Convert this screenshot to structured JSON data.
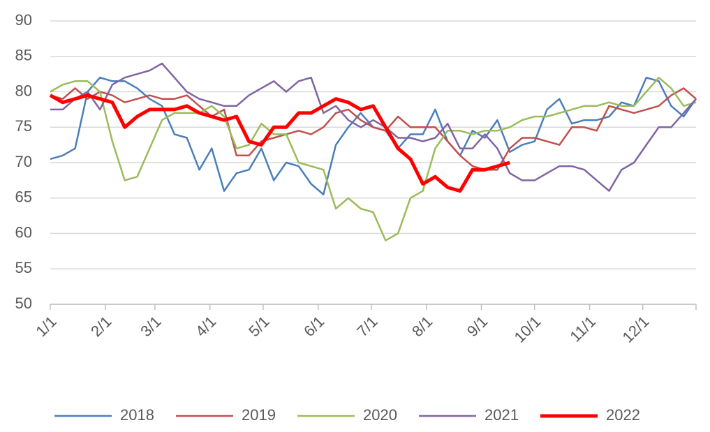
{
  "chart_data": {
    "type": "line",
    "x": [
      1,
      8,
      15,
      22,
      29,
      36,
      43,
      50,
      57,
      64,
      71,
      78,
      85,
      92,
      99,
      106,
      113,
      120,
      127,
      134,
      141,
      148,
      155,
      162,
      169,
      176,
      183,
      190,
      197,
      204,
      211,
      218,
      225,
      232,
      239,
      246,
      253,
      260,
      267,
      274,
      281,
      288,
      295,
      302,
      309,
      316,
      323,
      330,
      337,
      344,
      351,
      358,
      365
    ],
    "xlim": [
      1,
      365
    ],
    "xticks": [
      {
        "value": 1,
        "label": "1/1"
      },
      {
        "value": 32,
        "label": "2/1"
      },
      {
        "value": 60,
        "label": "3/1"
      },
      {
        "value": 91,
        "label": "4/1"
      },
      {
        "value": 121,
        "label": "5/1"
      },
      {
        "value": 152,
        "label": "6/1"
      },
      {
        "value": 182,
        "label": "7/1"
      },
      {
        "value": 213,
        "label": "8/1"
      },
      {
        "value": 244,
        "label": "9/1"
      },
      {
        "value": 274,
        "label": "10/1"
      },
      {
        "value": 305,
        "label": "11/1"
      },
      {
        "value": 335,
        "label": "12/1"
      }
    ],
    "ylim": [
      50,
      90
    ],
    "yticks": [
      50,
      55,
      60,
      65,
      70,
      75,
      80,
      85,
      90
    ],
    "grid": true,
    "legend": "bottom",
    "series": [
      {
        "name": "2018",
        "color": "#4a7ebb",
        "width": 2.5,
        "values": [
          70.5,
          71,
          72,
          80,
          82,
          81.5,
          81.5,
          80.5,
          79,
          78,
          74,
          73.5,
          69,
          72,
          66,
          68.5,
          69,
          72,
          67.5,
          70,
          69.5,
          67,
          65.5,
          72.5,
          75,
          77,
          75,
          74.5,
          72,
          74,
          74,
          77.5,
          73,
          71,
          74.5,
          73.5,
          76,
          71.5,
          72.5,
          73,
          77.5,
          79,
          75.5,
          76,
          76,
          76.5,
          78.5,
          78,
          82,
          81.5,
          78,
          76.5,
          79
        ]
      },
      {
        "name": "2019",
        "color": "#c0504d",
        "width": 2.5,
        "values": [
          79.5,
          79,
          80.5,
          79,
          80,
          79.5,
          78.5,
          79,
          79.5,
          79,
          79,
          79.5,
          78,
          76.5,
          77.5,
          71,
          71,
          73,
          73.5,
          74,
          74.5,
          74,
          75,
          77,
          77.5,
          76,
          75,
          74.5,
          76.5,
          75,
          75,
          75,
          73,
          71,
          69.5,
          69,
          69,
          72,
          73.5,
          73.5,
          73,
          72.5,
          75,
          75,
          74.5,
          78,
          77.5,
          77,
          77.5,
          78,
          79.5,
          80.5,
          79
        ]
      },
      {
        "name": "2020",
        "color": "#9bbb59",
        "width": 2.5,
        "values": [
          80,
          81,
          81.5,
          81.5,
          80,
          73,
          67.5,
          68,
          72,
          76,
          77,
          77,
          77,
          78,
          76.5,
          72,
          72.5,
          75.5,
          74,
          74,
          70,
          69.5,
          69,
          63.5,
          65,
          63.5,
          63,
          59,
          60,
          65,
          66,
          72,
          74.5,
          74.5,
          74,
          74.5,
          74.5,
          75,
          76,
          76.5,
          76.5,
          77,
          77.5,
          78,
          78,
          78.5,
          78,
          78,
          80,
          82,
          80.5,
          78,
          78.5
        ]
      },
      {
        "name": "2021",
        "color": "#8064a2",
        "width": 2.5,
        "values": [
          77.5,
          77.5,
          79,
          80,
          77.5,
          81,
          82,
          82.5,
          83,
          84,
          82,
          80,
          79,
          78.5,
          78,
          78,
          79.5,
          80.5,
          81.5,
          80,
          81.5,
          82,
          77,
          78,
          76,
          75,
          76,
          75,
          73.5,
          73.5,
          73,
          73.5,
          75.5,
          72,
          72,
          74,
          72,
          68.5,
          67.5,
          67.5,
          68.5,
          69.5,
          69.5,
          69,
          67.5,
          66,
          69,
          70,
          72.5,
          75,
          75,
          77,
          79
        ]
      },
      {
        "name": "2022",
        "color": "#ff0000",
        "width": 5,
        "values": [
          79.5,
          78.5,
          79,
          79.5,
          79,
          78.5,
          75,
          76.5,
          77.5,
          77.5,
          77.5,
          78,
          77,
          76.5,
          76,
          76.5,
          73,
          72.5,
          75,
          75,
          77,
          77,
          78,
          79,
          78.5,
          77.5,
          78,
          75,
          72,
          70.5,
          67,
          68,
          66.5,
          66,
          69,
          69,
          69.5,
          70,
          null,
          null,
          null,
          null,
          null,
          null,
          null,
          null,
          null,
          null,
          null,
          null,
          null,
          null,
          null
        ]
      }
    ]
  }
}
